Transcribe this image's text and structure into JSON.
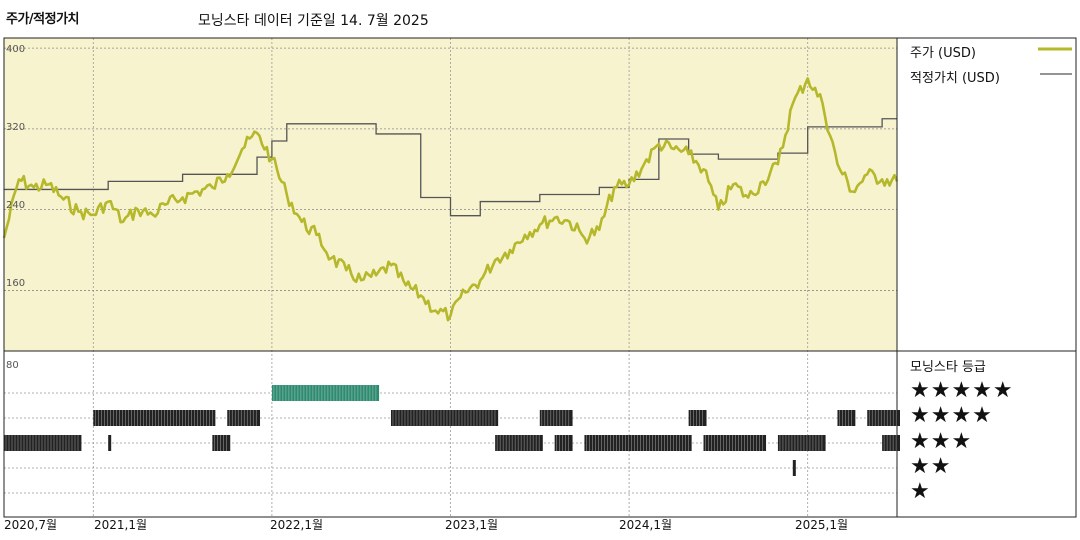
{
  "header": {
    "title": "주가/적정가치",
    "subtitle": "모닝스타 데이터 기준일 14. 7월 2025"
  },
  "legend": {
    "price_label": "주가 (USD)",
    "fair_value_label": "적정가치 (USD)",
    "rating_title": "모닝스타 등급",
    "stars": [
      "★★★★★",
      "★★★★",
      "★★★",
      "★★",
      "★"
    ]
  },
  "colors": {
    "price": "#b5b82a",
    "fair_value": "#555555",
    "plot_bg": "#f7f3cf",
    "five_star": "#2e8b6f",
    "rating_bars": "#222222"
  },
  "chart_data": [
    {
      "type": "line",
      "title": "주가/적정가치",
      "ylim": [
        100,
        410
      ],
      "yticks": [
        "400",
        "320",
        "240",
        "160"
      ],
      "xticks": [
        "2020,7월",
        "2021,1월",
        "2022,1월",
        "2023,1월",
        "2024,1월",
        "2025,1월"
      ],
      "grid": true,
      "legend_position": "right",
      "series": [
        {
          "name": "주가 (USD)",
          "points": [
            [
              "2020-07",
              212
            ],
            [
              "2020-08",
              270
            ],
            [
              "2020-09",
              262
            ],
            [
              "2020-10",
              265
            ],
            [
              "2020-11",
              250
            ],
            [
              "2020-12",
              238
            ],
            [
              "2021-01",
              235
            ],
            [
              "2021-02",
              248
            ],
            [
              "2021-03",
              228
            ],
            [
              "2021-04",
              240
            ],
            [
              "2021-05",
              235
            ],
            [
              "2021-06",
              246
            ],
            [
              "2021-07",
              252
            ],
            [
              "2021-08",
              258
            ],
            [
              "2021-09",
              262
            ],
            [
              "2021-10",
              275
            ],
            [
              "2021-11",
              300
            ],
            [
              "2021-12",
              316
            ],
            [
              "2022-01",
              290
            ],
            [
              "2022-02",
              255
            ],
            [
              "2022-03",
              228
            ],
            [
              "2022-04",
              215
            ],
            [
              "2022-05",
              192
            ],
            [
              "2022-06",
              180
            ],
            [
              "2022-07",
              170
            ],
            [
              "2022-08",
              175
            ],
            [
              "2022-09",
              185
            ],
            [
              "2022-10",
              165
            ],
            [
              "2022-11",
              155
            ],
            [
              "2022-12",
              140
            ],
            [
              "2023-01",
              135
            ],
            [
              "2023-02",
              158
            ],
            [
              "2023-03",
              170
            ],
            [
              "2023-04",
              190
            ],
            [
              "2023-05",
              200
            ],
            [
              "2023-06",
              215
            ],
            [
              "2023-07",
              225
            ],
            [
              "2023-08",
              232
            ],
            [
              "2023-09",
              228
            ],
            [
              "2023-10",
              212
            ],
            [
              "2023-11",
              220
            ],
            [
              "2023-12",
              262
            ],
            [
              "2024-01",
              265
            ],
            [
              "2024-02",
              285
            ],
            [
              "2024-03",
              305
            ],
            [
              "2024-04",
              300
            ],
            [
              "2024-05",
              295
            ],
            [
              "2024-06",
              280
            ],
            [
              "2024-07",
              240
            ],
            [
              "2024-08",
              265
            ],
            [
              "2024-09",
              252
            ],
            [
              "2024-10",
              268
            ],
            [
              "2024-11",
              285
            ],
            [
              "2024-12",
              345
            ],
            [
              "2025-01",
              370
            ],
            [
              "2025-02",
              345
            ],
            [
              "2025-03",
              285
            ],
            [
              "2025-04",
              258
            ],
            [
              "2025-05",
              275
            ],
            [
              "2025-06",
              270
            ],
            [
              "2025-07",
              268
            ]
          ]
        },
        {
          "name": "적정가치 (USD)",
          "step": true,
          "points": [
            [
              "2020-07",
              260
            ],
            [
              "2021-02",
              268
            ],
            [
              "2021-07",
              275
            ],
            [
              "2021-12",
              292
            ],
            [
              "2022-01",
              308
            ],
            [
              "2022-02",
              325
            ],
            [
              "2022-08",
              315
            ],
            [
              "2022-11",
              252
            ],
            [
              "2023-01",
              234
            ],
            [
              "2023-03",
              248
            ],
            [
              "2023-07",
              255
            ],
            [
              "2023-11",
              262
            ],
            [
              "2024-01",
              270
            ],
            [
              "2024-03",
              310
            ],
            [
              "2024-05",
              295
            ],
            [
              "2024-07",
              290
            ],
            [
              "2024-11",
              296
            ],
            [
              "2025-01",
              322
            ],
            [
              "2025-05",
              322
            ],
            [
              "2025-06",
              330
            ],
            [
              "2025-07",
              330
            ]
          ]
        }
      ]
    },
    {
      "type": "bar",
      "title": "모닝스타 등급",
      "ylabel_tick": "80",
      "rows": [
        "★★★★★",
        "★★★★",
        "★★★",
        "★★",
        "★"
      ],
      "spans": [
        {
          "stars": 5,
          "from": "2022-01",
          "to": "2022-08"
        },
        {
          "stars": 4,
          "from": "2021-01",
          "to": "2021-09"
        },
        {
          "stars": 4,
          "from": "2021-10",
          "to": "2021-12"
        },
        {
          "stars": 4,
          "from": "2022-09",
          "to": "2023-04"
        },
        {
          "stars": 4,
          "from": "2023-07",
          "to": "2023-09"
        },
        {
          "stars": 4,
          "from": "2024-05",
          "to": "2024-06"
        },
        {
          "stars": 4,
          "from": "2025-03",
          "to": "2025-04"
        },
        {
          "stars": 4,
          "from": "2025-05",
          "to": "2025-07"
        },
        {
          "stars": 3,
          "from": "2020-07",
          "to": "2020-12"
        },
        {
          "stars": 3,
          "from": "2021-02",
          "to": "2021-02"
        },
        {
          "stars": 3,
          "from": "2021-09",
          "to": "2021-10"
        },
        {
          "stars": 3,
          "from": "2023-04",
          "to": "2023-07"
        },
        {
          "stars": 3,
          "from": "2023-08",
          "to": "2023-09"
        },
        {
          "stars": 3,
          "from": "2023-10",
          "to": "2024-05"
        },
        {
          "stars": 3,
          "from": "2024-06",
          "to": "2024-10"
        },
        {
          "stars": 3,
          "from": "2024-11",
          "to": "2025-02"
        },
        {
          "stars": 3,
          "from": "2025-06",
          "to": "2025-07"
        },
        {
          "stars": 2,
          "from": "2024-12",
          "to": "2024-12"
        }
      ]
    }
  ]
}
